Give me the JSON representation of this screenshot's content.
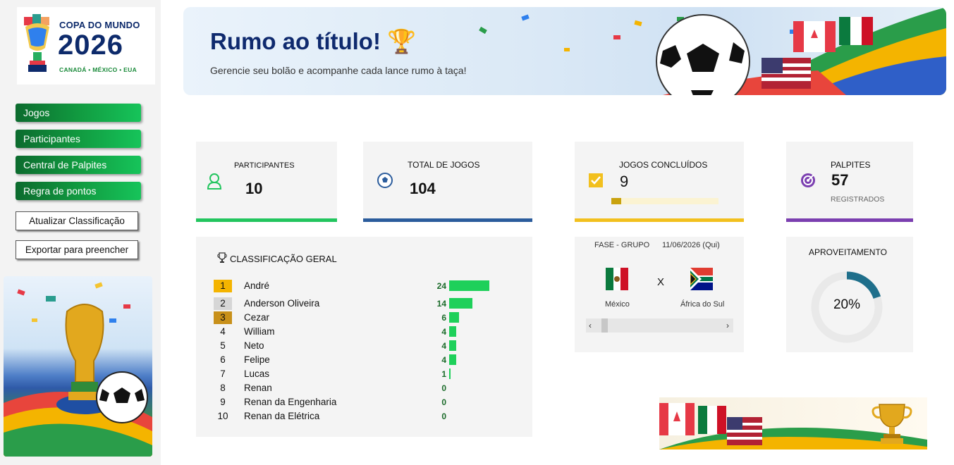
{
  "logo": {
    "title": "COPA DO MUNDO",
    "year": "2026",
    "subtitle": "CANADÁ • MÉXICO • EUA"
  },
  "nav": {
    "items": [
      "Jogos",
      "Participantes",
      "Central de Palpites",
      "Regra de pontos"
    ]
  },
  "actions": {
    "update": "Atualizar Classificação",
    "export": "Exportar para preencher"
  },
  "banner": {
    "title": "Rumo ao título! 🏆",
    "subtitle": "Gerencie seu bolão e acompanhe cada lance rumo à taça!"
  },
  "stats": {
    "participants": {
      "label": "PARTICIPANTES",
      "value": "10",
      "color": "#22c55e"
    },
    "total_games": {
      "label": "TOTAL DE JOGOS",
      "value": "104",
      "color": "#2b5c9c"
    },
    "completed": {
      "label": "JOGOS CONCLUÍDOS",
      "value": "9",
      "progress": 0.087,
      "color": "#f2c01e"
    },
    "guesses": {
      "label": "PALPITES",
      "value": "57",
      "sub": "REGISTRADOS",
      "color": "#7b3fb0"
    }
  },
  "ranking": {
    "title": "CLASSIFICAÇÃO GERAL",
    "max_points": 24,
    "rows": [
      {
        "pos": "1",
        "name": "André",
        "points": 24,
        "badge": "#f4b400"
      },
      {
        "pos": "2",
        "name": "Anderson Oliveira",
        "points": 14,
        "badge": "#d6d6d6"
      },
      {
        "pos": "3",
        "name": "Cezar",
        "points": 6,
        "badge": "#c8901a"
      },
      {
        "pos": "4",
        "name": "William",
        "points": 4,
        "badge": ""
      },
      {
        "pos": "5",
        "name": "Neto",
        "points": 4,
        "badge": ""
      },
      {
        "pos": "6",
        "name": "Felipe",
        "points": 4,
        "badge": ""
      },
      {
        "pos": "7",
        "name": "Lucas",
        "points": 1,
        "badge": ""
      },
      {
        "pos": "8",
        "name": "Renan",
        "points": 0,
        "badge": ""
      },
      {
        "pos": "9",
        "name": "Renan da  Engenharia",
        "points": 0,
        "badge": ""
      },
      {
        "pos": "10",
        "name": "Renan da Elétrica",
        "points": 0,
        "badge": ""
      }
    ]
  },
  "match": {
    "phase": "FASE - GRUPO",
    "date": "11/06/2026 (Qui)",
    "home": "México",
    "away": "África do Sul",
    "vs": "X"
  },
  "performance": {
    "label": "APROVEITAMENTO",
    "value": "20%",
    "fraction": 0.2,
    "color": "#1f6f8b"
  }
}
